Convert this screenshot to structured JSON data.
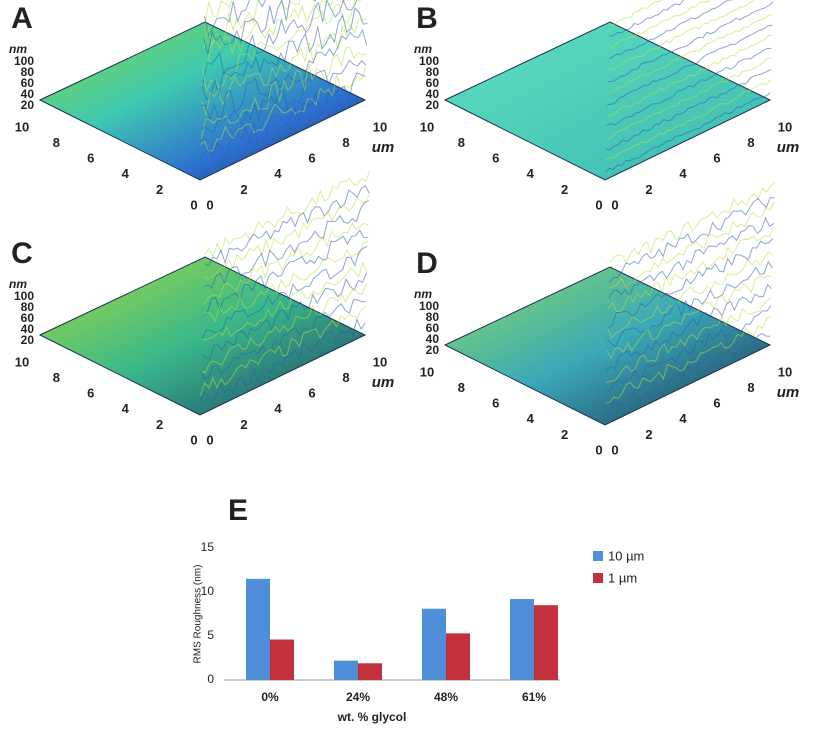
{
  "chart_data": [
    {
      "type": "surface",
      "title": "A",
      "zlabel": "nm",
      "zlim": [
        20,
        100
      ],
      "zticks": [
        20,
        40,
        60,
        80,
        100
      ],
      "ylim": [
        0,
        10
      ],
      "yticks": [
        0,
        2,
        4,
        6,
        8,
        10
      ],
      "xlim": [
        0,
        10
      ],
      "xticks": [
        0,
        2,
        4,
        6,
        8,
        10
      ],
      "xlabel": "um"
    },
    {
      "type": "surface",
      "title": "B",
      "zlabel": "nm",
      "zlim": [
        20,
        100
      ],
      "zticks": [
        20,
        40,
        60,
        80,
        100
      ],
      "ylim": [
        0,
        10
      ],
      "yticks": [
        0,
        2,
        4,
        6,
        8,
        10
      ],
      "xlim": [
        0,
        10
      ],
      "xticks": [
        0,
        2,
        4,
        6,
        8,
        10
      ],
      "xlabel": "um"
    },
    {
      "type": "surface",
      "title": "C",
      "zlabel": "nm",
      "zlim": [
        20,
        100
      ],
      "zticks": [
        20,
        40,
        60,
        80,
        100
      ],
      "ylim": [
        0,
        10
      ],
      "yticks": [
        0,
        2,
        4,
        6,
        8,
        10
      ],
      "xlim": [
        0,
        10
      ],
      "xticks": [
        0,
        2,
        4,
        6,
        8,
        10
      ],
      "xlabel": "um"
    },
    {
      "type": "surface",
      "title": "D",
      "zlabel": "nm",
      "zlim": [
        20,
        100
      ],
      "zticks": [
        20,
        40,
        60,
        80,
        100
      ],
      "ylim": [
        0,
        10
      ],
      "yticks": [
        0,
        2,
        4,
        6,
        8,
        10
      ],
      "xlim": [
        0,
        10
      ],
      "xticks": [
        0,
        2,
        4,
        6,
        8,
        10
      ],
      "xlabel": "um"
    },
    {
      "type": "bar",
      "title": "E",
      "ylabel": "RMS Roughness (nm)",
      "xlabel": "wt. % glycol",
      "categories": [
        "0%",
        "24%",
        "48%",
        "61%"
      ],
      "series": [
        {
          "name": "10 µm",
          "color": "#4f8ed8",
          "values": [
            11.5,
            2.2,
            8.1,
            9.2
          ]
        },
        {
          "name": "1 µm",
          "color": "#c3313c",
          "values": [
            4.6,
            1.9,
            5.3,
            8.5
          ]
        }
      ],
      "ylim": [
        0,
        15
      ],
      "yticks": [
        0,
        5,
        10,
        15
      ]
    }
  ]
}
